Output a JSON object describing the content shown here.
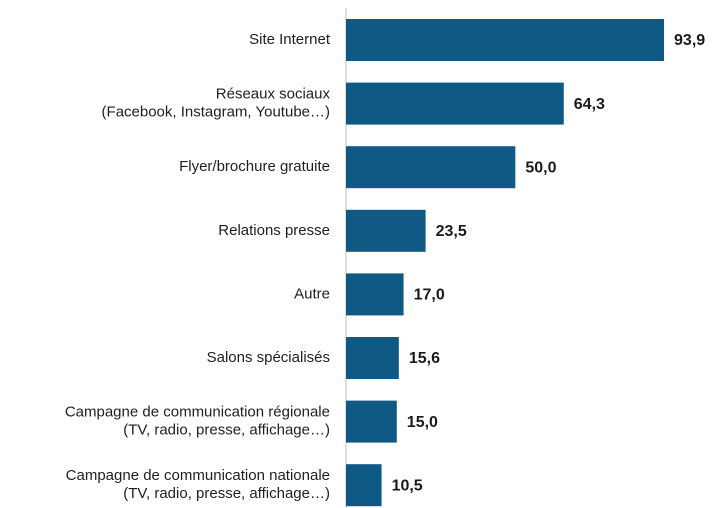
{
  "chart_data": {
    "type": "bar",
    "orientation": "horizontal",
    "categories": [
      "Site Internet",
      "Réseaux sociaux\n(Facebook, Instagram, Youtube…)",
      "Flyer/brochure gratuite",
      "Relations presse",
      "Autre",
      "Salons spécialisés",
      "Campagne de communication régionale\n(TV, radio, presse, affichage…)",
      "Campagne de communication nationale\n(TV, radio, presse, affichage…)"
    ],
    "values": [
      93.9,
      64.3,
      50.0,
      23.5,
      17.0,
      15.6,
      15.0,
      10.5
    ],
    "value_labels": [
      "93,9",
      "64,3",
      "50,0",
      "23,5",
      "17,0",
      "15,6",
      "15,0",
      "10,5"
    ],
    "color": "#0f5a85"
  }
}
